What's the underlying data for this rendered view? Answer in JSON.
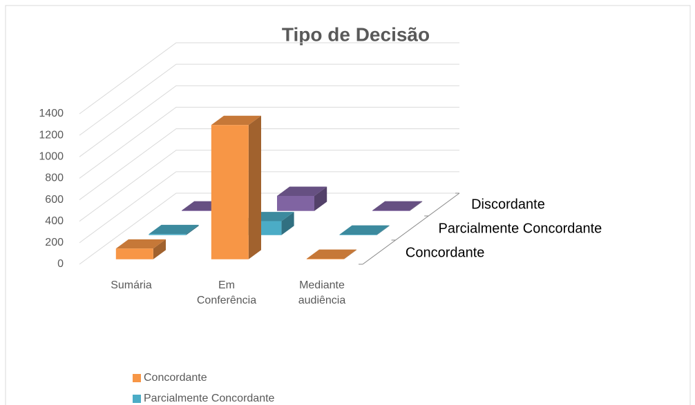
{
  "chart_data": {
    "type": "bar3d",
    "title": "Tipo de Decisão",
    "categories": [
      "Sumária",
      "Em Conferência",
      "Mediante audiência"
    ],
    "series": [
      {
        "name": "Concordante",
        "color": "#f79646",
        "values": [
          100,
          1250,
          5
        ]
      },
      {
        "name": "Parcialmente Concordante",
        "color": "#4bacc6",
        "values": [
          10,
          130,
          5
        ]
      },
      {
        "name": "Discordante",
        "color": "#8064a2",
        "values": [
          5,
          140,
          5
        ]
      }
    ],
    "ylim": [
      0,
      1400
    ],
    "yticks": [
      0,
      200,
      400,
      600,
      800,
      1000,
      1200,
      1400
    ],
    "grid": true,
    "legend": "bottom"
  }
}
